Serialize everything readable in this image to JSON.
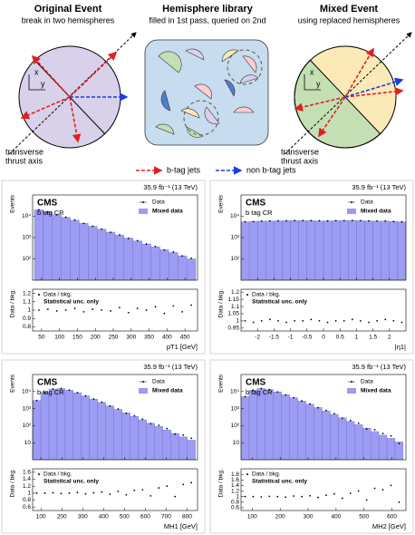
{
  "diagram": {
    "panels": [
      {
        "title": "Original Event",
        "subtitle": "break in two hemispheres"
      },
      {
        "title": "Hemisphere library",
        "subtitle": "filled in 1st pass, queried on 2nd"
      },
      {
        "title": "Mixed Event",
        "subtitle": "using replaced hemispheres"
      }
    ],
    "axis_x": "x",
    "axis_y": "y",
    "thrust_label": [
      "transverse",
      "thrust axis"
    ],
    "legend": [
      "b-tag jets",
      "non b-tag jets"
    ]
  },
  "chart_data": [
    {
      "type": "histogram",
      "lumi": "35.9 fb⁻¹ (13 TeV)",
      "experiment": "CMS",
      "region": "b tag CR",
      "ylabel": "Events",
      "xlabel": "pT1 [GeV]",
      "log_y": true,
      "bins": [
        30,
        55,
        80,
        105,
        130,
        155,
        180,
        205,
        230,
        255,
        280,
        305,
        330,
        355,
        380,
        405,
        430,
        455,
        480
      ],
      "series": [
        {
          "name": "Data",
          "color": "#000000",
          "values": [
            20000,
            16200,
            11900,
            9000,
            6630,
            4610,
            3430,
            2500,
            1780,
            1340,
            920,
            714,
            500,
            385,
            259,
            210,
            137,
            106
          ]
        },
        {
          "name": "Mixed data",
          "color": "#9c9cf2",
          "values": [
            20000,
            16000,
            12000,
            9000,
            6500,
            4700,
            3400,
            2500,
            1800,
            1300,
            950,
            700,
            500,
            370,
            270,
            200,
            140,
            100
          ]
        }
      ],
      "xlim": [
        25,
        485
      ],
      "xticks": [
        50,
        100,
        150,
        200,
        250,
        300,
        350,
        400,
        450
      ],
      "ylim": [
        10,
        100000
      ],
      "yticks": [
        {
          "value": 100,
          "label": "10²"
        },
        {
          "value": 1000,
          "label": "10³"
        },
        {
          "value": 10000,
          "label": "10⁴"
        }
      ],
      "ratio": {
        "ylabel": "Data / bkg.",
        "legend": [
          "Data / bkg.",
          "Statistical unc. only"
        ],
        "values": [
          1.0,
          1.01,
          0.99,
          1.0,
          1.02,
          0.98,
          1.01,
          1.0,
          0.99,
          1.03,
          0.97,
          1.02,
          1.0,
          1.04,
          0.96,
          1.05,
          0.98,
          1.06
        ],
        "ylim": [
          0.75,
          1.25
        ],
        "yticks": [
          0.8,
          0.9,
          1,
          1.1,
          1.2
        ]
      }
    },
    {
      "type": "histogram",
      "lumi": "35.9 fb⁻¹ (13 TeV)",
      "experiment": "CMS",
      "region": "b tag CR",
      "ylabel": "Events",
      "xlabel": "|η1|",
      "log_y": true,
      "bins": [
        -2.5,
        -2.25,
        -2,
        -1.75,
        -1.5,
        -1.25,
        -1,
        -0.75,
        -0.5,
        -0.25,
        0,
        0.25,
        0.5,
        0.75,
        1,
        1.25,
        1.5,
        1.75,
        2,
        2.25,
        2.5
      ],
      "series": [
        {
          "name": "Data",
          "color": "#000000",
          "values": [
            5500,
            5640,
            5900,
            6060,
            6100,
            6140,
            6300,
            6300,
            6260,
            6100,
            6040,
            6200,
            6300,
            6360,
            6200,
            6040,
            6000,
            5960,
            5700,
            5450
          ]
        },
        {
          "name": "Mixed data",
          "color": "#9c9cf2",
          "values": [
            5500,
            5700,
            5900,
            6000,
            6100,
            6200,
            6300,
            6300,
            6200,
            6100,
            6100,
            6200,
            6300,
            6300,
            6200,
            6100,
            6000,
            5900,
            5700,
            5500
          ]
        }
      ],
      "xlim": [
        -2.5,
        2.5
      ],
      "xticks": [
        -2,
        -1.5,
        -1,
        -0.5,
        0,
        0.5,
        1,
        1.5,
        2
      ],
      "ylim": [
        10,
        100000
      ],
      "yticks": [
        {
          "value": 100,
          "label": "10²"
        },
        {
          "value": 1000,
          "label": "10³"
        },
        {
          "value": 10000,
          "label": "10⁴"
        }
      ],
      "ratio": {
        "ylabel": "Data / bkg.",
        "legend": [
          "Data / bkg.",
          "Statistical unc. only"
        ],
        "values": [
          1.0,
          0.99,
          1.0,
          1.01,
          1.0,
          0.99,
          1.0,
          1.0,
          1.01,
          1.0,
          0.99,
          1.0,
          1.0,
          1.01,
          1.0,
          0.99,
          1.0,
          1.01,
          1.0,
          0.99
        ],
        "ylim": [
          0.93,
          1.22
        ],
        "yticks": [
          0.95,
          1,
          1.05,
          1.1,
          1.15,
          1.2
        ]
      }
    },
    {
      "type": "histogram",
      "lumi": "35.9 fb⁻¹ (13 TeV)",
      "experiment": "CMS",
      "region": "b tag CR",
      "ylabel": "Events",
      "xlabel": "MH1 [GeV]",
      "log_y": true,
      "bins": [
        60,
        99,
        138,
        177,
        216,
        255,
        294,
        333,
        372,
        411,
        450,
        489,
        528,
        567,
        606,
        645,
        684,
        723,
        762,
        801,
        840
      ],
      "series": [
        {
          "name": "Data",
          "color": "#000000",
          "values": [
            3000,
            9000,
            14140,
            14850,
            12000,
            8670,
            5490,
            3640,
            2370,
            1410,
            945,
            530,
            380,
            240,
            130,
            105,
            67,
            32,
            28,
            18
          ]
        },
        {
          "name": "Mixed data",
          "color": "#9c9cf2",
          "values": [
            3000,
            9000,
            14000,
            15000,
            12000,
            8500,
            5600,
            3600,
            2300,
            1450,
            900,
            560,
            350,
            220,
            140,
            90,
            56,
            35,
            22,
            14
          ]
        }
      ],
      "xlim": [
        60,
        850
      ],
      "xticks": [
        100,
        200,
        300,
        400,
        500,
        600,
        700,
        800
      ],
      "ylim": [
        1,
        100000
      ],
      "yticks": [
        {
          "value": 10,
          "label": "10"
        },
        {
          "value": 100,
          "label": "10²"
        },
        {
          "value": 1000,
          "label": "10³"
        },
        {
          "value": 10000,
          "label": "10⁴"
        }
      ],
      "ratio": {
        "ylabel": "Data / bkg.",
        "legend": [
          "Data / bkg.",
          "Statistical unc. only"
        ],
        "values": [
          1.0,
          1.0,
          1.01,
          0.99,
          1.0,
          1.02,
          0.98,
          1.01,
          1.03,
          0.97,
          1.05,
          0.95,
          1.08,
          1.1,
          0.92,
          1.15,
          1.2,
          0.9,
          1.25,
          1.3
        ],
        "ylim": [
          0.5,
          1.7
        ],
        "yticks": [
          0.6,
          0.8,
          1,
          1.2,
          1.4,
          1.6
        ]
      }
    },
    {
      "type": "histogram",
      "lumi": "35.9 fb⁻¹ (13 TeV)",
      "experiment": "CMS",
      "region": "b tag CR",
      "ylabel": "Events",
      "xlabel": "MH2 [GeV]",
      "log_y": true,
      "bins": [
        60,
        89,
        118,
        147,
        176,
        205,
        234,
        263,
        292,
        321,
        350,
        379,
        408,
        437,
        466,
        495,
        524,
        553,
        582,
        611,
        640
      ],
      "series": [
        {
          "name": "Data",
          "color": "#000000",
          "values": [
            5000,
            12000,
            14850,
            13130,
            9500,
            6370,
            4390,
            2800,
            1850,
            1120,
            770,
            510,
            270,
            200,
            140,
            63,
            58,
            35,
            25,
            9
          ]
        },
        {
          "name": "Mixed data",
          "color": "#9c9cf2",
          "values": [
            5000,
            12000,
            15000,
            13000,
            9500,
            6500,
            4300,
            2800,
            1800,
            1150,
            730,
            460,
            290,
            180,
            115,
            72,
            45,
            28,
            18,
            11
          ]
        }
      ],
      "xlim": [
        60,
        650
      ],
      "xticks": [
        100,
        200,
        300,
        400,
        500,
        600
      ],
      "ylim": [
        1,
        100000
      ],
      "yticks": [
        {
          "value": 10,
          "label": "10"
        },
        {
          "value": 100,
          "label": "10²"
        },
        {
          "value": 1000,
          "label": "10³"
        },
        {
          "value": 10000,
          "label": "10⁴"
        }
      ],
      "ratio": {
        "ylabel": "Data / bkg.",
        "legend": [
          "Data / bkg.",
          "Statistical unc. only"
        ],
        "values": [
          1.0,
          1.0,
          0.99,
          1.01,
          1.0,
          0.98,
          1.02,
          1.0,
          1.03,
          0.97,
          1.05,
          1.1,
          0.94,
          1.12,
          1.2,
          0.88,
          1.3,
          1.25,
          1.4,
          0.8
        ],
        "ylim": [
          0.5,
          2
        ],
        "yticks": [
          0.6,
          0.8,
          1,
          1.2,
          1.4,
          1.6,
          1.8
        ]
      }
    }
  ]
}
